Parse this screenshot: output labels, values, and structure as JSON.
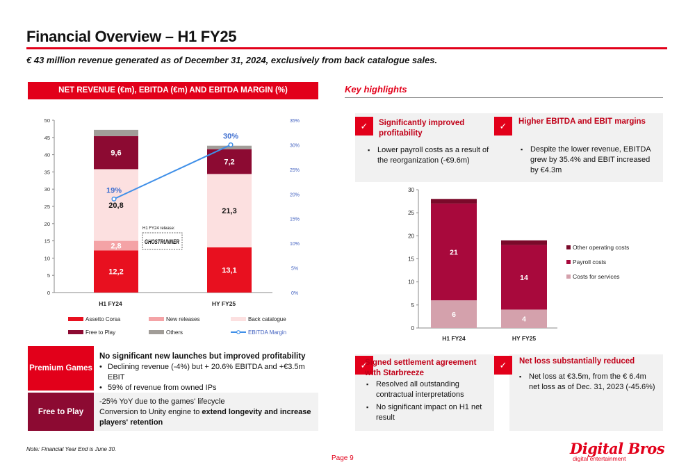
{
  "header": {
    "title": "Financial Overview – H1 FY25",
    "subtitle": "€ 43 million revenue generated as of December 31, 2024, exclusively from back catalogue sales."
  },
  "revenue_section": {
    "title": "NET REVENUE (€m), EBITDA (€m) AND EBITDA MARGIN (%)",
    "annotation": "H1 FY24 release:",
    "annotation_logo_text": "GHOSTRUNNER"
  },
  "highlights": {
    "title": "Key highlights",
    "check": "✓",
    "cards": [
      {
        "title": "Significantly improved profitability",
        "bullets": [
          "Lower payroll costs as a result of the reorganization (-€9.6m)"
        ]
      },
      {
        "title": "Higher EBITDA and EBIT margins",
        "bullets": [
          "Despite the lower revenue, EBITDA grew by 35.4% and EBIT increased by €4.3m"
        ]
      },
      {
        "title": "Signed settlement agreement with Starbreeze",
        "bullets": [
          "Resolved all outstanding contractual interpretations",
          "No significant impact on H1 net result"
        ]
      },
      {
        "title": "Net loss substantially reduced",
        "bullets": [
          "Net loss at €3.5m, from the € 6.4m net loss as of Dec. 31, 2023 (-45.6%)"
        ]
      }
    ]
  },
  "segments": {
    "premium": {
      "label": "Premium Games",
      "headline": "No significant new launches but improved profitability",
      "bullets": [
        "Declining revenue (-4%) but + 20.6% EBITDA and +€3.5m EBIT",
        "59% of revenue from owned IPs"
      ]
    },
    "ftp": {
      "label": "Free to Play",
      "line1": "-25% YoY due to the games' lifecycle",
      "line2_prefix": "Conversion to Unity engine to ",
      "line2_bold": "extend longevity and increase players' retention"
    }
  },
  "footer": {
    "note": "Note: Financial Year End is June 30.",
    "page": "Page 9",
    "logo_word": "Digital Bros",
    "logo_sub": "digital entertainment"
  },
  "colors": {
    "brand_red": "#e2001a",
    "assetto_corsa": "#e8101f",
    "new_releases": "#f4a3a6",
    "back_catalogue": "#fce0e0",
    "free_to_play": "#8c0a32",
    "others": "#a19d98",
    "ebitda_margin": "#3f8fe8",
    "other_operating_costs": "#7a0a2a",
    "payroll_costs": "#a8093c",
    "costs_for_services": "#d4a1ac",
    "premium_label_bg": "#e2001a",
    "ftp_label_bg": "#8c0a32",
    "premium_body_bg": "#ffffff",
    "ftp_body_bg": "#f2f2f2"
  },
  "chart_data": [
    {
      "type": "bar",
      "stacked": true,
      "categories": [
        "H1 FY24",
        "HY FY25"
      ],
      "series": [
        {
          "name": "Assetto Corsa",
          "values": [
            12.2,
            13.1
          ],
          "labels": [
            "12,2",
            "13,1"
          ]
        },
        {
          "name": "New releases",
          "values": [
            2.8,
            0
          ],
          "labels": [
            "2,8",
            ""
          ]
        },
        {
          "name": "Back catalogue",
          "values": [
            20.8,
            21.3
          ],
          "labels": [
            "20,8",
            "21,3"
          ]
        },
        {
          "name": "Free to Play",
          "values": [
            9.6,
            7.2
          ],
          "labels": [
            "9,6",
            "7,2"
          ]
        },
        {
          "name": "Others",
          "values": [
            1.8,
            1.0
          ],
          "labels": [
            "",
            ""
          ]
        }
      ],
      "line_series": {
        "name": "EBITDA Margin",
        "values": [
          19,
          30
        ],
        "labels": [
          "19%",
          "30%"
        ],
        "axis": "right"
      },
      "ylim": [
        0,
        50
      ],
      "yticks": [
        "0",
        "5",
        "10",
        "15",
        "20",
        "25",
        "30",
        "35",
        "40",
        "45",
        "50"
      ],
      "y2lim": [
        0,
        35
      ],
      "y2ticks": [
        "0%",
        "5%",
        "10%",
        "15%",
        "20%",
        "25%",
        "30%",
        "35%"
      ],
      "legend": "bottom",
      "grid": false
    },
    {
      "type": "bar",
      "stacked": true,
      "categories": [
        "H1 FY24",
        "HY FY25"
      ],
      "series": [
        {
          "name": "Costs for services",
          "values": [
            6,
            4
          ],
          "labels": [
            "6",
            "4"
          ]
        },
        {
          "name": "Payroll costs",
          "values": [
            21,
            14
          ],
          "labels": [
            "21",
            "14"
          ]
        },
        {
          "name": "Other operating costs",
          "values": [
            1,
            1
          ],
          "labels": [
            "",
            ""
          ]
        }
      ],
      "ylim": [
        0,
        30
      ],
      "yticks": [
        "0",
        "5",
        "10",
        "15",
        "20",
        "25",
        "30"
      ],
      "legend_order": [
        "Other operating costs",
        "Payroll costs",
        "Costs for services"
      ],
      "legend": "right",
      "grid": false
    }
  ]
}
